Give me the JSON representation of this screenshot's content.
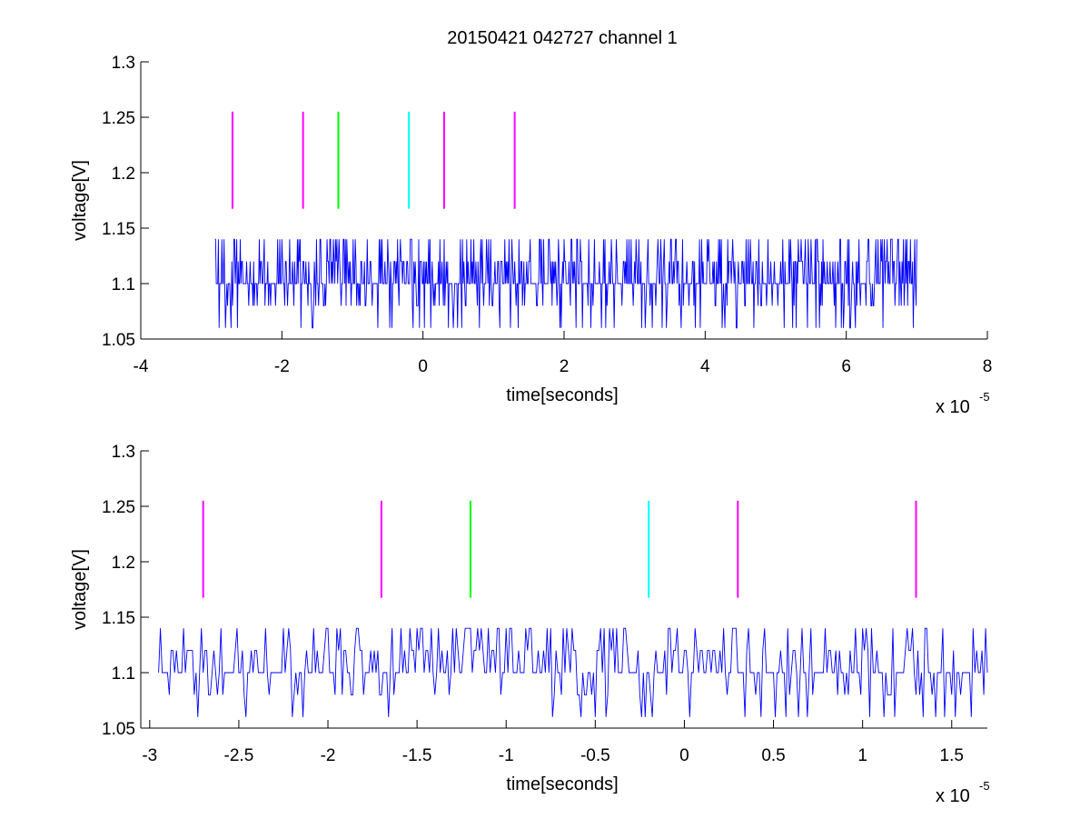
{
  "figure": {
    "title": "20150421 042727 channel 1"
  },
  "chart_data": [
    {
      "type": "line",
      "id": "top",
      "xlabel": "time[seconds]",
      "ylabel": "voltage[V]",
      "x_exponent_label": "x 10",
      "x_exponent": "-5",
      "xlim": [
        -4e-05,
        8e-05
      ],
      "ylim": [
        1.05,
        1.3
      ],
      "xticks": [
        -4e-05,
        -2e-05,
        0,
        2e-05,
        4e-05,
        6e-05,
        8e-05
      ],
      "xtick_labels": [
        "-4",
        "-2",
        "0",
        "2",
        "4",
        "6",
        "8"
      ],
      "yticks": [
        1.05,
        1.1,
        1.15,
        1.2,
        1.25,
        1.3
      ],
      "ytick_labels": [
        "1.05",
        "1.1",
        "1.15",
        "1.2",
        "1.25",
        "1.3"
      ],
      "grid": false,
      "signal": {
        "color": "#0000ff",
        "x_start": -2.95e-05,
        "x_end": 7e-05,
        "sample_step": 1e-07,
        "levels": [
          1.06,
          1.08,
          1.1,
          1.12,
          1.14
        ],
        "baseline": 1.1
      },
      "markers": [
        {
          "x": -2.7e-05,
          "y_low": 1.1675,
          "y_high": 1.255,
          "color": "#ff00ff"
        },
        {
          "x": -1.7e-05,
          "y_low": 1.1675,
          "y_high": 1.255,
          "color": "#ff00ff"
        },
        {
          "x": -1.2e-05,
          "y_low": 1.1675,
          "y_high": 1.255,
          "color": "#00ff00"
        },
        {
          "x": -2e-06,
          "y_low": 1.1675,
          "y_high": 1.255,
          "color": "#00ffff"
        },
        {
          "x": 3e-06,
          "y_low": 1.1675,
          "y_high": 1.255,
          "color": "#ff00ff"
        },
        {
          "x": 1.3e-05,
          "y_low": 1.1675,
          "y_high": 1.255,
          "color": "#ff00ff"
        }
      ]
    },
    {
      "type": "line",
      "id": "bottom",
      "xlabel": "time[seconds]",
      "ylabel": "voltage[V]",
      "x_exponent_label": "x 10",
      "x_exponent": "-5",
      "xlim": [
        -3.05e-05,
        1.7e-05
      ],
      "ylim": [
        1.05,
        1.3
      ],
      "xticks": [
        -3e-05,
        -2.5e-05,
        -2e-05,
        -1.5e-05,
        -1e-05,
        -5e-06,
        0,
        5e-06,
        1e-05,
        1.5e-05
      ],
      "xtick_labels": [
        "-3",
        "-2.5",
        "-2",
        "-1.5",
        "-1",
        "-0.5",
        "0",
        "0.5",
        "1",
        "1.5"
      ],
      "yticks": [
        1.05,
        1.1,
        1.15,
        1.2,
        1.25,
        1.3
      ],
      "ytick_labels": [
        "1.05",
        "1.1",
        "1.15",
        "1.2",
        "1.25",
        "1.3"
      ],
      "grid": false,
      "signal": {
        "color": "#0000ff",
        "x_start": -2.95e-05,
        "x_end": 1.7e-05,
        "sample_step": 1e-07,
        "levels": [
          1.06,
          1.08,
          1.1,
          1.12,
          1.14
        ],
        "baseline": 1.1
      },
      "markers": [
        {
          "x": -2.7e-05,
          "y_low": 1.1675,
          "y_high": 1.255,
          "color": "#ff00ff"
        },
        {
          "x": -1.7e-05,
          "y_low": 1.1675,
          "y_high": 1.255,
          "color": "#ff00ff"
        },
        {
          "x": -1.2e-05,
          "y_low": 1.1675,
          "y_high": 1.255,
          "color": "#00ff00"
        },
        {
          "x": -2e-06,
          "y_low": 1.1675,
          "y_high": 1.255,
          "color": "#00ffff"
        },
        {
          "x": 3e-06,
          "y_low": 1.1675,
          "y_high": 1.255,
          "color": "#ff00ff"
        },
        {
          "x": 1.3e-05,
          "y_low": 1.1675,
          "y_high": 1.255,
          "color": "#ff00ff"
        }
      ]
    }
  ]
}
